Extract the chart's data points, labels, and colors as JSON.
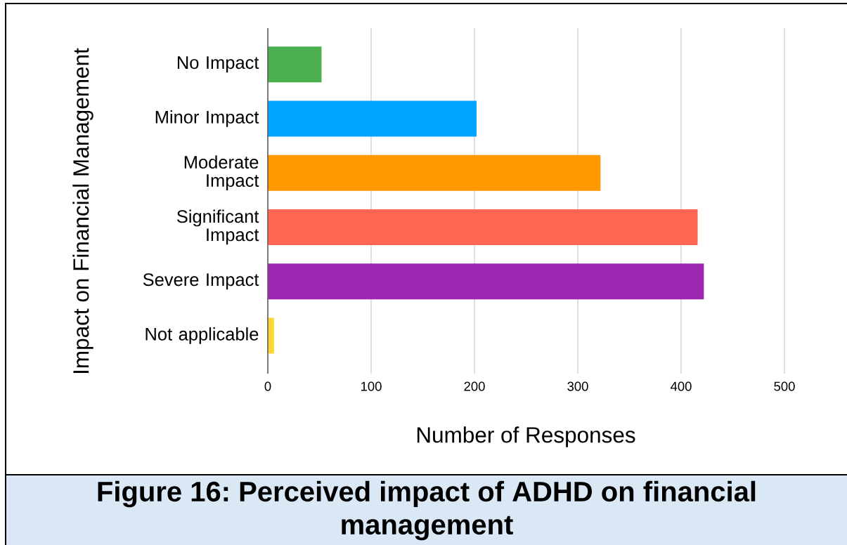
{
  "chart_data": {
    "type": "bar",
    "orientation": "horizontal",
    "title": "Figure 16: Perceived impact of ADHD on financial management",
    "xlabel": "Number of Responses",
    "ylabel": "Impact on Financial Management",
    "categories": [
      "No Impact",
      "Minor Impact",
      "Moderate Impact",
      "Significant Impact",
      "Severe Impact",
      "Not applicable"
    ],
    "values": [
      52,
      202,
      322,
      416,
      422,
      6
    ],
    "colors": [
      "#4caf50",
      "#00a3ff",
      "#ff9900",
      "#ff6550",
      "#9c27b0",
      "#fdd835"
    ],
    "xlim": [
      0,
      500
    ],
    "xticks": [
      0,
      100,
      200,
      300,
      400,
      500
    ],
    "grid": "x"
  }
}
